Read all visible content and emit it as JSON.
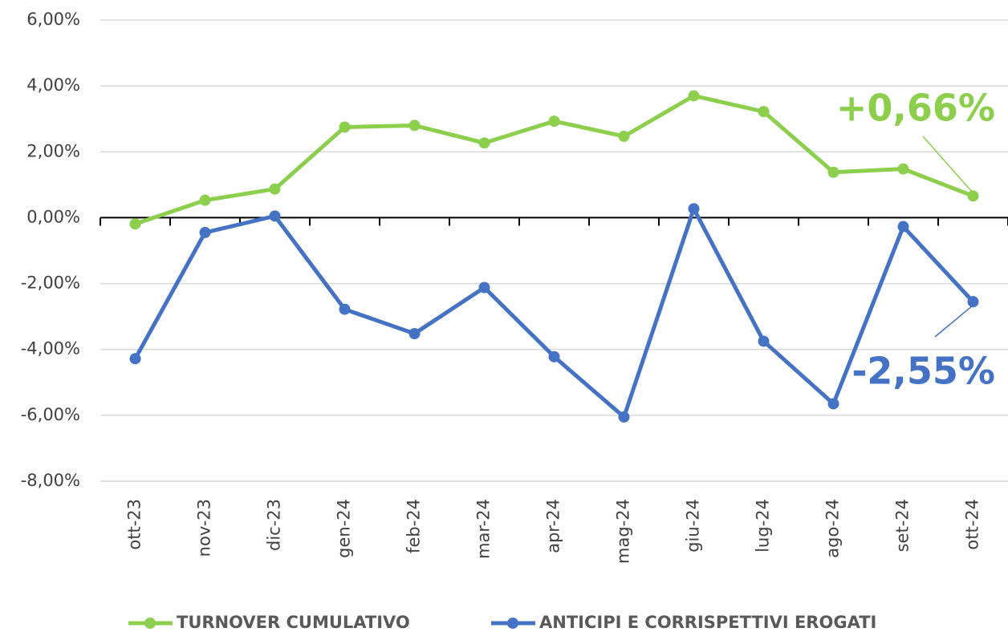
{
  "chart_data": {
    "type": "line",
    "categories": [
      "ott-23",
      "nov-23",
      "dic-23",
      "gen-24",
      "feb-24",
      "mar-24",
      "apr-24",
      "mag-24",
      "giu-24",
      "lug-24",
      "ago-24",
      "set-24",
      "ott-24"
    ],
    "series": [
      {
        "name": "TURNOVER CUMULATIVO",
        "color": "#8ccf4d",
        "values": [
          -0.19,
          0.53,
          0.87,
          2.75,
          2.8,
          2.27,
          2.93,
          2.47,
          3.7,
          3.22,
          1.38,
          1.48,
          0.66
        ]
      },
      {
        "name": "ANTICIPI E CORRISPETTIVI EROGATI",
        "color": "#4472c4",
        "values": [
          -4.28,
          -0.45,
          0.05,
          -2.78,
          -3.52,
          -2.12,
          -4.22,
          -6.05,
          0.27,
          -3.75,
          -5.65,
          -0.27,
          -2.55
        ]
      }
    ],
    "annotations": [
      "+0,66%",
      "-2,55%"
    ],
    "ylim": [
      -8,
      6
    ],
    "yticks": [
      {
        "value": -8,
        "label": "-8,00%"
      },
      {
        "value": -6,
        "label": "-6,00%"
      },
      {
        "value": -4,
        "label": "-4,00%"
      },
      {
        "value": -2,
        "label": "-2,00%"
      },
      {
        "value": 0,
        "label": "0,00%"
      },
      {
        "value": 2,
        "label": "2,00%"
      },
      {
        "value": 4,
        "label": "4,00%"
      },
      {
        "value": 6,
        "label": "6,00%"
      }
    ],
    "grid": true,
    "legend": "bottom"
  }
}
